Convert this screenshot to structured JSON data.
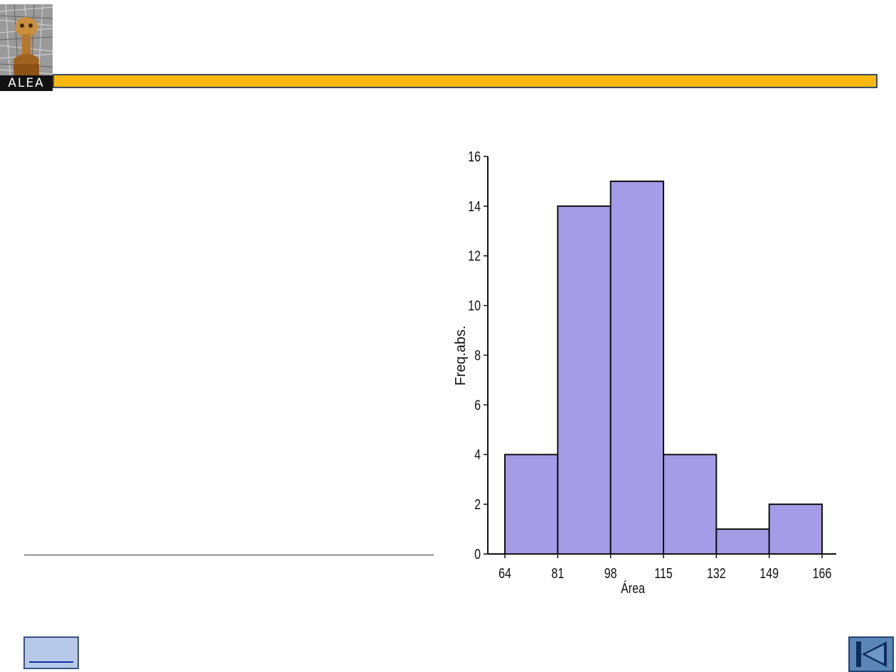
{
  "logo": {
    "text": "ALEA"
  },
  "chart_data": {
    "type": "bar",
    "histogram": true,
    "bin_edges": [
      64,
      81,
      98,
      115,
      132,
      149,
      166
    ],
    "categories": [
      "64-81",
      "81-98",
      "98-115",
      "115-132",
      "132-149",
      "149-166"
    ],
    "values": [
      4,
      14,
      15,
      4,
      1,
      2
    ],
    "x_tick_labels": [
      "64",
      "81",
      "98",
      "115",
      "132",
      "149",
      "166"
    ],
    "y_tick_labels": [
      "0",
      "2",
      "4",
      "6",
      "8",
      "10",
      "12",
      "14",
      "16"
    ],
    "xlabel": "Área",
    "ylabel": "Freq.abs.",
    "title": "",
    "ylim": [
      0,
      16
    ],
    "xlim": [
      64,
      166
    ],
    "grid": false,
    "bar_color": "#a69be6",
    "bar_edge_color": "#111111"
  },
  "colors": {
    "header_bar": "#fbb80f",
    "header_border": "#3b4a66",
    "button_fill": "#b7c8e8",
    "nav_button_fill": "#5b86b8"
  },
  "buttons": {
    "link_button_icon": "hyperlink-icon",
    "back_button_icon": "first-slide-icon"
  }
}
